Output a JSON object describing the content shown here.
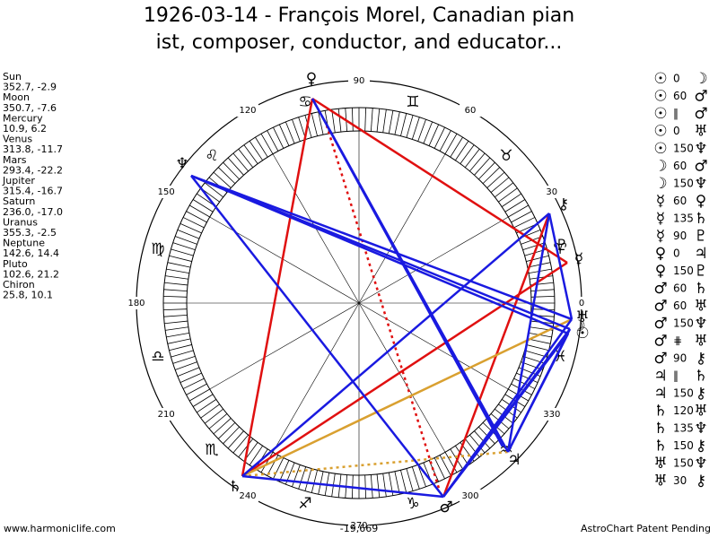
{
  "title_lines": [
    "1926-03-14 - François Morel, Canadian pian",
    "ist, composer, conductor, and educator..."
  ],
  "planets": [
    {
      "name": "Sun",
      "coords": "352.7, -2.9",
      "glyph": "☉"
    },
    {
      "name": "Moon",
      "coords": "350.7, -7.6",
      "glyph": "☽"
    },
    {
      "name": "Mercury",
      "coords": "10.9, 6.2",
      "glyph": "☿"
    },
    {
      "name": "Venus",
      "coords": "313.8, -11.7",
      "glyph": "♀"
    },
    {
      "name": "Mars",
      "coords": "293.4, -22.2",
      "glyph": "♂"
    },
    {
      "name": "Jupiter",
      "coords": "315.4, -16.7",
      "glyph": "♃"
    },
    {
      "name": "Saturn",
      "coords": "236.0, -17.0",
      "glyph": "♄"
    },
    {
      "name": "Uranus",
      "coords": "355.3, -2.5",
      "glyph": "♅"
    },
    {
      "name": "Neptune",
      "coords": "142.6, 14.4",
      "glyph": "♆"
    },
    {
      "name": "Pluto",
      "coords": "102.6, 21.2",
      "glyph": "♇"
    },
    {
      "name": "Chiron",
      "coords": "25.8, 10.1",
      "glyph": "⚷"
    }
  ],
  "degree_labels": [
    0,
    30,
    60,
    90,
    120,
    150,
    180,
    210,
    240,
    270,
    300,
    330
  ],
  "signs": [
    "♈",
    "♉",
    "♊",
    "♋",
    "♌",
    "♍",
    "♎",
    "♏",
    "♐",
    "♑",
    "♒",
    "♓"
  ],
  "aspects": [
    {
      "from": "☉",
      "aspect": "0",
      "to": "☽"
    },
    {
      "from": "☉",
      "aspect": "60",
      "to": "♂"
    },
    {
      "from": "☉",
      "aspect": "‖",
      "to": "♂"
    },
    {
      "from": "☉",
      "aspect": "0",
      "to": "♅"
    },
    {
      "from": "☉",
      "aspect": "150",
      "to": "♆"
    },
    {
      "from": "☽",
      "aspect": "60",
      "to": "♂"
    },
    {
      "from": "☽",
      "aspect": "150",
      "to": "♆"
    },
    {
      "from": "☿",
      "aspect": "60",
      "to": "♀"
    },
    {
      "from": "☿",
      "aspect": "135",
      "to": "♄"
    },
    {
      "from": "☿",
      "aspect": "90",
      "to": "♇"
    },
    {
      "from": "♀",
      "aspect": "0",
      "to": "♃"
    },
    {
      "from": "♀",
      "aspect": "150",
      "to": "♇"
    },
    {
      "from": "♂",
      "aspect": "60",
      "to": "♄"
    },
    {
      "from": "♂",
      "aspect": "60",
      "to": "♅"
    },
    {
      "from": "♂",
      "aspect": "150",
      "to": "♆"
    },
    {
      "from": "♂",
      "aspect": "⋕",
      "to": "♅"
    },
    {
      "from": "♂",
      "aspect": "90",
      "to": "⚷"
    },
    {
      "from": "♃",
      "aspect": "‖",
      "to": "♄"
    },
    {
      "from": "♃",
      "aspect": "150",
      "to": "⚷"
    },
    {
      "from": "♄",
      "aspect": "120",
      "to": "♅"
    },
    {
      "from": "♄",
      "aspect": "135",
      "to": "♆"
    },
    {
      "from": "♄",
      "aspect": "150",
      "to": "⚷"
    },
    {
      "from": "♅",
      "aspect": "150",
      "to": "♆"
    },
    {
      "from": "♅",
      "aspect": "30",
      "to": "⚷"
    }
  ],
  "footer": {
    "left": "www.harmoniclife.com",
    "center": "-19,669",
    "right": "AstroChart Patent Pending"
  }
}
